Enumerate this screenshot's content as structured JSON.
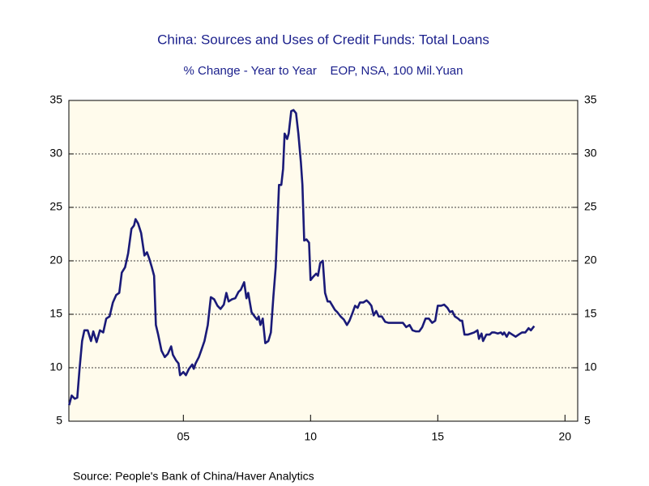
{
  "chart_data": {
    "type": "line",
    "title": "China: Sources and Uses of Credit Funds: Total Loans",
    "subtitle": "% Change - Year to Year    EOP, NSA, 100 Mil.Yuan",
    "source": "Source:  People's Bank of China/Haver Analytics",
    "xlim": [
      2000.5,
      2020.5
    ],
    "xticks": [
      {
        "value": 2005,
        "label": "05"
      },
      {
        "value": 2010,
        "label": "10"
      },
      {
        "value": 2015,
        "label": "15"
      },
      {
        "value": 2020,
        "label": "20"
      }
    ],
    "ylim": [
      5,
      35
    ],
    "yticks": [
      5,
      10,
      15,
      20,
      25,
      30,
      35
    ],
    "grid": true,
    "series": [
      {
        "name": "Total Loans",
        "color": "#1a1a78",
        "x": [
          2000.51,
          2000.61,
          2000.73,
          2000.83,
          2000.92,
          2001.02,
          2001.11,
          2001.24,
          2001.37,
          2001.46,
          2001.59,
          2001.72,
          2001.85,
          2001.97,
          2002.1,
          2002.23,
          2002.36,
          2002.48,
          2002.58,
          2002.71,
          2002.83,
          2002.96,
          2003.06,
          2003.12,
          2003.22,
          2003.34,
          2003.47,
          2003.57,
          2003.66,
          2003.76,
          2003.85,
          2003.92,
          2004.01,
          2004.14,
          2004.27,
          2004.39,
          2004.52,
          2004.59,
          2004.71,
          2004.81,
          2004.87,
          2005.0,
          2005.1,
          2005.22,
          2005.35,
          2005.41,
          2005.48,
          2005.61,
          2005.73,
          2005.83,
          2005.96,
          2006.08,
          2006.21,
          2006.34,
          2006.46,
          2006.59,
          2006.69,
          2006.78,
          2006.91,
          2007.04,
          2007.17,
          2007.26,
          2007.39,
          2007.48,
          2007.55,
          2007.68,
          2007.8,
          2007.9,
          2007.96,
          2008.03,
          2008.12,
          2008.22,
          2008.34,
          2008.44,
          2008.54,
          2008.63,
          2008.76,
          2008.85,
          2008.92,
          2008.98,
          2009.08,
          2009.14,
          2009.24,
          2009.33,
          2009.43,
          2009.52,
          2009.62,
          2009.68,
          2009.75,
          2009.84,
          2009.94,
          2010.0,
          2010.1,
          2010.22,
          2010.29,
          2010.38,
          2010.48,
          2010.57,
          2010.67,
          2010.76,
          2010.86,
          2010.96,
          2011.05,
          2011.18,
          2011.31,
          2011.43,
          2011.53,
          2011.66,
          2011.75,
          2011.85,
          2011.94,
          2012.07,
          2012.2,
          2012.29,
          2012.39,
          2012.48,
          2012.58,
          2012.68,
          2012.8,
          2012.93,
          2013.06,
          2013.18,
          2013.31,
          2013.47,
          2013.63,
          2013.76,
          2013.89,
          2014.01,
          2014.14,
          2014.27,
          2014.39,
          2014.52,
          2014.65,
          2014.78,
          2014.9,
          2015.0,
          2015.13,
          2015.25,
          2015.38,
          2015.48,
          2015.57,
          2015.67,
          2015.8,
          2015.89,
          2015.96,
          2016.05,
          2016.18,
          2016.31,
          2016.43,
          2016.56,
          2016.62,
          2016.72,
          2016.78,
          2016.91,
          2017.04,
          2017.13,
          2017.23,
          2017.36,
          2017.48,
          2017.55,
          2017.61,
          2017.71,
          2017.8,
          2017.93,
          2018.06,
          2018.18,
          2018.31,
          2018.44,
          2018.57,
          2018.66,
          2018.79
        ],
        "values": [
          6.5,
          7.4,
          7.1,
          7.2,
          9.9,
          12.5,
          13.5,
          13.5,
          12.5,
          13.4,
          12.4,
          13.5,
          13.3,
          14.6,
          14.8,
          16.1,
          16.8,
          17.0,
          18.9,
          19.4,
          20.7,
          23.0,
          23.3,
          23.9,
          23.5,
          22.6,
          20.5,
          20.8,
          20.2,
          19.4,
          18.6,
          14.0,
          13.1,
          11.6,
          11.0,
          11.3,
          12.0,
          11.2,
          10.7,
          10.4,
          9.3,
          9.6,
          9.3,
          9.9,
          10.3,
          9.9,
          10.4,
          11.0,
          11.8,
          12.5,
          14.0,
          16.6,
          16.4,
          15.8,
          15.5,
          15.9,
          17.0,
          16.2,
          16.4,
          16.5,
          17.1,
          17.3,
          18.0,
          16.5,
          17.0,
          15.2,
          14.8,
          14.5,
          14.8,
          14.0,
          14.6,
          12.3,
          12.5,
          13.3,
          16.7,
          19.4,
          27.1,
          27.1,
          28.6,
          31.9,
          31.4,
          31.9,
          34.0,
          34.1,
          33.8,
          31.9,
          29.2,
          27.1,
          21.9,
          22.0,
          21.7,
          18.2,
          18.5,
          18.8,
          18.6,
          19.8,
          20.0,
          17.0,
          16.2,
          16.2,
          15.8,
          15.4,
          15.2,
          14.8,
          14.5,
          14.0,
          14.4,
          15.2,
          15.8,
          15.6,
          16.1,
          16.1,
          16.3,
          16.1,
          15.8,
          14.9,
          15.3,
          14.8,
          14.8,
          14.3,
          14.2,
          14.2,
          14.2,
          14.2,
          14.2,
          13.8,
          14.0,
          13.5,
          13.4,
          13.4,
          13.8,
          14.6,
          14.6,
          14.2,
          14.4,
          15.8,
          15.8,
          15.9,
          15.6,
          15.2,
          15.3,
          14.8,
          14.6,
          14.4,
          14.4,
          13.1,
          13.1,
          13.2,
          13.3,
          13.5,
          12.7,
          13.2,
          12.5,
          13.1,
          13.1,
          13.3,
          13.3,
          13.2,
          13.3,
          13.1,
          13.3,
          12.9,
          13.3,
          13.1,
          12.9,
          13.1,
          13.3,
          13.3,
          13.7,
          13.5,
          13.9
        ]
      }
    ]
  }
}
